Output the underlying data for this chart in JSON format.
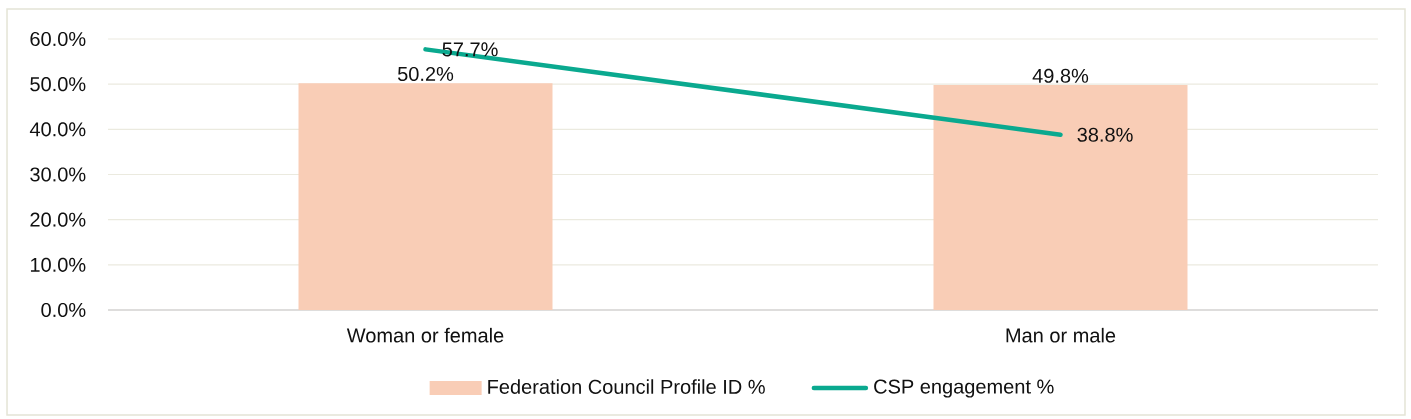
{
  "chart_data": {
    "type": "bar",
    "categories": [
      "Woman or female",
      "Man or male"
    ],
    "series": [
      {
        "name": "Federation Council Profile ID %",
        "color": "#f9cdb6",
        "values": [
          50.2,
          49.8
        ],
        "value_labels": [
          "50.2%",
          "49.8%"
        ]
      },
      {
        "name": "CSP engagement %",
        "type": "line",
        "color": "#0aa98f",
        "values": [
          57.7,
          38.8
        ],
        "value_labels": [
          "57.7%",
          "38.8%"
        ]
      }
    ],
    "ylim": [
      0,
      60
    ],
    "yticks": [
      {
        "value": 0,
        "label": "0.0%"
      },
      {
        "value": 10,
        "label": "10.0%"
      },
      {
        "value": 20,
        "label": "20.0%"
      },
      {
        "value": 30,
        "label": "30.0%"
      },
      {
        "value": 40,
        "label": "40.0%"
      },
      {
        "value": 50,
        "label": "50.0%"
      },
      {
        "value": 60,
        "label": "60.0%"
      }
    ],
    "grid": "y",
    "legend": "bottom"
  }
}
